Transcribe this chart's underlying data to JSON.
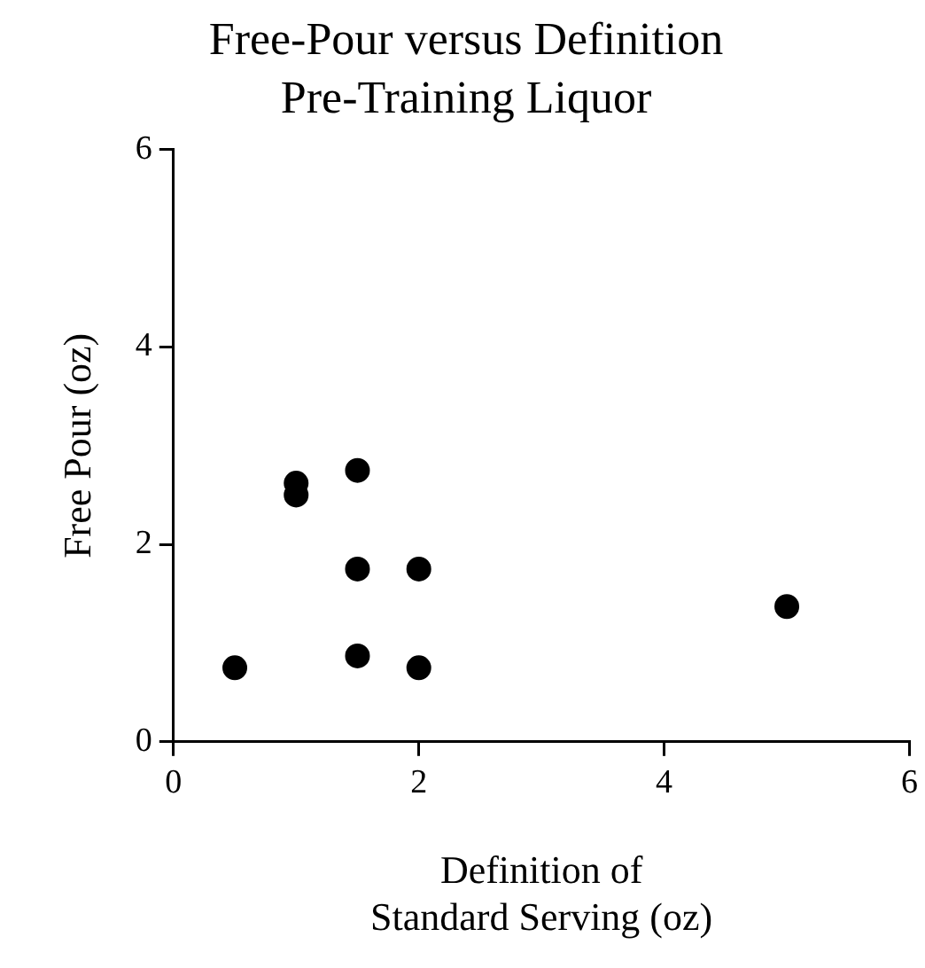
{
  "chart_data": {
    "type": "scatter",
    "title": "Free-Pour versus Definition",
    "subtitle": "Pre-Training Liquor",
    "xlabel": "Definition of\nStandard Serving (oz)",
    "ylabel": "Free Pour (oz)",
    "x": [
      0.5,
      1,
      1,
      1.5,
      1.5,
      2,
      1.5,
      2,
      5
    ],
    "series": [
      {
        "color": "#000000",
        "values": [
          0.75,
          2.62,
          2.5,
          2.75,
          1.75,
          1.75,
          0.87,
          0.75,
          1.37
        ]
      }
    ],
    "xlim": [
      0,
      6
    ],
    "xticks": [
      0,
      2,
      4,
      6
    ],
    "ylim": [
      0,
      6
    ],
    "yticks": [
      0,
      2,
      4,
      6
    ],
    "grid": false,
    "legend": false,
    "marker": "circle"
  }
}
